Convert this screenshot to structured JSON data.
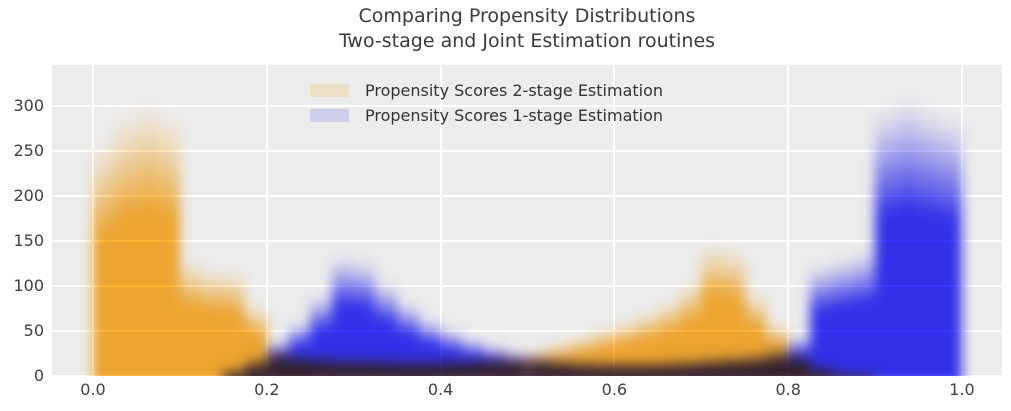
{
  "title": {
    "line1": "Comparing Propensity Distributions",
    "line2": "Two-stage and Joint Estimation routines"
  },
  "legend": {
    "items": [
      {
        "label": "Propensity Scores 2-stage Estimation",
        "swatch_color": "#ede0c6"
      },
      {
        "label": "Propensity Scores 1-stage Estimation",
        "swatch_color": "#cdcdec"
      }
    ]
  },
  "axes": {
    "x_tick_labels": [
      "0.0",
      "0.2",
      "0.4",
      "0.6",
      "0.8",
      "1.0"
    ],
    "x_tick_values": [
      0,
      0.2,
      0.4,
      0.6,
      0.8,
      1.0
    ],
    "y_tick_labels": [
      "0",
      "50",
      "100",
      "150",
      "200",
      "250",
      "300"
    ],
    "y_tick_values": [
      0,
      50,
      100,
      150,
      200,
      250,
      300
    ]
  },
  "colors": {
    "plot_background": "#ececec",
    "grid_line": "#ffffff",
    "title_text": "#3a3a3a",
    "tick_text": "#404040",
    "series_orange": "#f0a42e",
    "series_blue": "#3230e8"
  },
  "chart_data": {
    "type": "bar",
    "subtype": "overlaid-translucent-histograms",
    "title": "Comparing Propensity Distributions / Two-stage and Joint Estimation routines",
    "xlabel": "",
    "ylabel": "",
    "xlim": [
      0,
      1
    ],
    "ylim": [
      0,
      346
    ],
    "grid": true,
    "legend_position": "upper center",
    "bin_width": 0.025,
    "bin_start": 0.0,
    "series": [
      {
        "name": "Propensity Scores 2-stage Estimation",
        "color": "#f0a42e",
        "values": [
          265,
          295,
          308,
          295,
          130,
          122,
          118,
          80,
          32,
          27,
          24,
          22,
          22,
          21,
          20,
          20,
          21,
          22,
          24,
          26,
          30,
          38,
          46,
          54,
          62,
          72,
          85,
          105,
          150,
          145,
          95,
          60,
          28,
          12,
          5,
          2,
          0,
          0,
          0,
          0
        ]
      },
      {
        "name": "Propensity Scores 1-stage Estimation",
        "color": "#3230e8",
        "values": [
          0,
          0,
          0,
          0,
          0,
          0,
          8,
          20,
          40,
          60,
          90,
          135,
          130,
          105,
          82,
          65,
          52,
          42,
          34,
          28,
          24,
          21,
          19,
          18,
          18,
          18,
          19,
          20,
          22,
          24,
          27,
          32,
          45,
          125,
          132,
          140,
          300,
          310,
          300,
          290
        ]
      }
    ]
  }
}
